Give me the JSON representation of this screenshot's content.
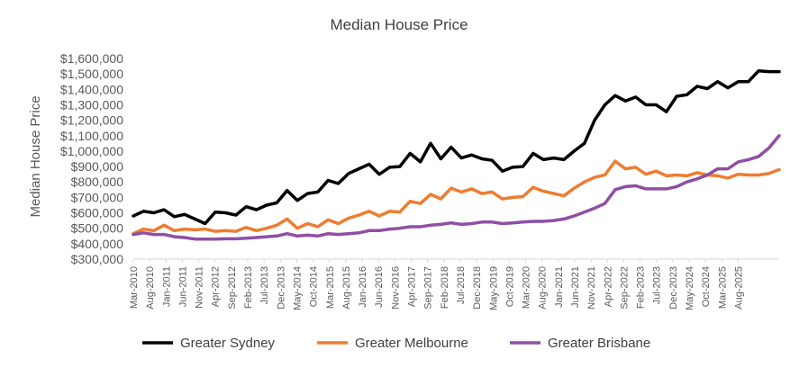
{
  "chart_data": {
    "type": "line",
    "title": "Median House Price",
    "xlabel": "",
    "ylabel": "Median House Price",
    "ylim": [
      300000,
      1600000
    ],
    "y_ticks": [
      300000,
      400000,
      500000,
      600000,
      700000,
      800000,
      900000,
      1000000,
      1100000,
      1200000,
      1300000,
      1400000,
      1500000,
      1600000
    ],
    "y_tick_labels": [
      "$300,000",
      "$400,000",
      "$500,000",
      "$600,000",
      "$700,000",
      "$800,000",
      "$900,000",
      "$1,000,000",
      "$1,100,000",
      "$1,200,000",
      "$1,300,000",
      "$1,400,000",
      "$1,500,000",
      "$1,600,000"
    ],
    "x_tick_labels": [
      "Mar-2010",
      "Aug-2010",
      "Jan-2011",
      "Jun-2011",
      "Nov-2011",
      "Apr-2012",
      "Sep-2012",
      "Feb-2013",
      "Jul-2013",
      "Dec-2013",
      "May-2014",
      "Oct-2014",
      "Mar-2015",
      "Aug-2015",
      "Jan-2016",
      "Jun-2016",
      "Nov-2016",
      "Apr-2017",
      "Sep-2017",
      "Feb-2018",
      "Jul-2018",
      "Dec-2018",
      "May-2019",
      "Oct-2019",
      "Mar-2020",
      "Aug-2020",
      "Jan-2021",
      "Jun-2021",
      "Nov-2021",
      "Apr-2022",
      "Sep-2022",
      "Feb-2023",
      "Jul-2023",
      "Dec-2023",
      "May-2024",
      "Oct-2024",
      "Mar-2025",
      "Aug-2025"
    ],
    "n_points": 64,
    "series": [
      {
        "name": "Greater Sydney",
        "color": "#000000",
        "values": [
          580000,
          610000,
          600000,
          620000,
          575000,
          590000,
          560000,
          530000,
          605000,
          600000,
          585000,
          640000,
          620000,
          650000,
          665000,
          745000,
          680000,
          725000,
          735000,
          810000,
          790000,
          855000,
          885000,
          915000,
          850000,
          895000,
          900000,
          985000,
          930000,
          1050000,
          950000,
          1025000,
          955000,
          975000,
          950000,
          940000,
          870000,
          895000,
          900000,
          985000,
          945000,
          955000,
          945000,
          1000000,
          1050000,
          1200000,
          1300000,
          1360000,
          1325000,
          1350000,
          1300000,
          1300000,
          1255000,
          1355000,
          1365000,
          1420000,
          1405000,
          1450000,
          1410000,
          1450000,
          1450000,
          1520000,
          1515000,
          1515000
        ]
      },
      {
        "name": "Greater Melbourne",
        "color": "#ED7D31",
        "values": [
          465000,
          495000,
          485000,
          520000,
          485000,
          495000,
          490000,
          495000,
          480000,
          485000,
          480000,
          505000,
          485000,
          500000,
          520000,
          560000,
          500000,
          530000,
          510000,
          555000,
          530000,
          565000,
          585000,
          610000,
          580000,
          610000,
          605000,
          675000,
          660000,
          720000,
          690000,
          760000,
          735000,
          755000,
          725000,
          735000,
          690000,
          700000,
          705000,
          765000,
          740000,
          725000,
          710000,
          760000,
          800000,
          830000,
          845000,
          935000,
          885000,
          895000,
          850000,
          870000,
          840000,
          845000,
          840000,
          860000,
          845000,
          840000,
          825000,
          850000,
          845000,
          845000,
          855000,
          880000
        ]
      },
      {
        "name": "Greater Brisbane",
        "color": "#8E4FA5",
        "values": [
          460000,
          470000,
          460000,
          460000,
          445000,
          440000,
          430000,
          430000,
          430000,
          432000,
          432000,
          435000,
          440000,
          445000,
          450000,
          465000,
          450000,
          455000,
          450000,
          465000,
          460000,
          465000,
          470000,
          485000,
          485000,
          495000,
          500000,
          510000,
          510000,
          520000,
          525000,
          535000,
          525000,
          530000,
          540000,
          540000,
          530000,
          535000,
          540000,
          545000,
          545000,
          550000,
          560000,
          580000,
          605000,
          630000,
          660000,
          750000,
          770000,
          775000,
          755000,
          755000,
          755000,
          770000,
          800000,
          820000,
          845000,
          885000,
          885000,
          930000,
          945000,
          965000,
          1020000,
          1100000
        ]
      }
    ],
    "legend_position": "bottom",
    "grid": false
  }
}
